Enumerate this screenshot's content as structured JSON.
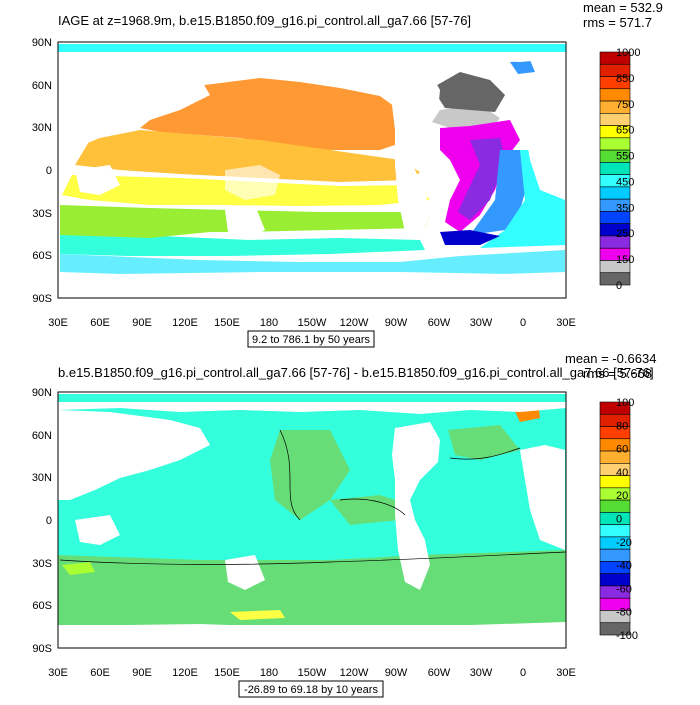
{
  "panels": [
    {
      "title": "IAGE at z=1968.9m, b.e15.B1850.f09_g16.pi_control.all_ga7.66 [57-76]",
      "mean": "mean = 532.9",
      "rms": "rms = 571.7",
      "range_label": "9.2 to 786.1 by 50 years",
      "colorbar_labels": [
        "1000",
        "850",
        "750",
        "650",
        "550",
        "450",
        "350",
        "250",
        "150",
        "0"
      ],
      "colorbar_colors": [
        "#c00000",
        "#e02000",
        "#ff3e00",
        "#ff8a00",
        "#ffb030",
        "#ffd070",
        "#ffff00",
        "#aaff33",
        "#55dd33",
        "#00e6b8",
        "#33ffff",
        "#00ccff",
        "#3399ff",
        "#0044ff",
        "#0000cc",
        "#8a2be2",
        "#ee00ee",
        "#c8c8c8",
        "#666666"
      ],
      "lat_labels": [
        "90N",
        "60N",
        "30N",
        "0",
        "30S",
        "60S",
        "90S"
      ],
      "lon_labels": [
        "30E",
        "60E",
        "90E",
        "120E",
        "150E",
        "180",
        "150W",
        "120W",
        "90W",
        "60W",
        "30W",
        "0",
        "30E"
      ]
    },
    {
      "title": "b.e15.B1850.f09_g16.pi_control.all_ga7.66 [57-76] - b.e15.B1850.f09_g16.pi_control.all_ga7.66 [57-76]",
      "mean": "mean = -0.6634",
      "rms": "rms = 5.668",
      "range_label": "-26.89 to 69.18 by 10 years",
      "colorbar_labels": [
        "100",
        "80",
        "60",
        "40",
        "20",
        "0",
        "-20",
        "-40",
        "-60",
        "-80",
        "-100"
      ],
      "colorbar_colors": [
        "#c00000",
        "#e02000",
        "#ff3e00",
        "#ff8a00",
        "#ffb030",
        "#ffd070",
        "#ffff00",
        "#aaff33",
        "#55dd33",
        "#00e6b8",
        "#33ffff",
        "#00ccff",
        "#3399ff",
        "#0044ff",
        "#0000cc",
        "#8a2be2",
        "#ee00ee",
        "#c8c8c8",
        "#666666"
      ],
      "lat_labels": [
        "90N",
        "60N",
        "30N",
        "0",
        "30S",
        "60S",
        "90S"
      ],
      "lon_labels": [
        "30E",
        "60E",
        "90E",
        "120E",
        "150E",
        "180",
        "150W",
        "120W",
        "90W",
        "60W",
        "30W",
        "0",
        "30E"
      ]
    }
  ]
}
